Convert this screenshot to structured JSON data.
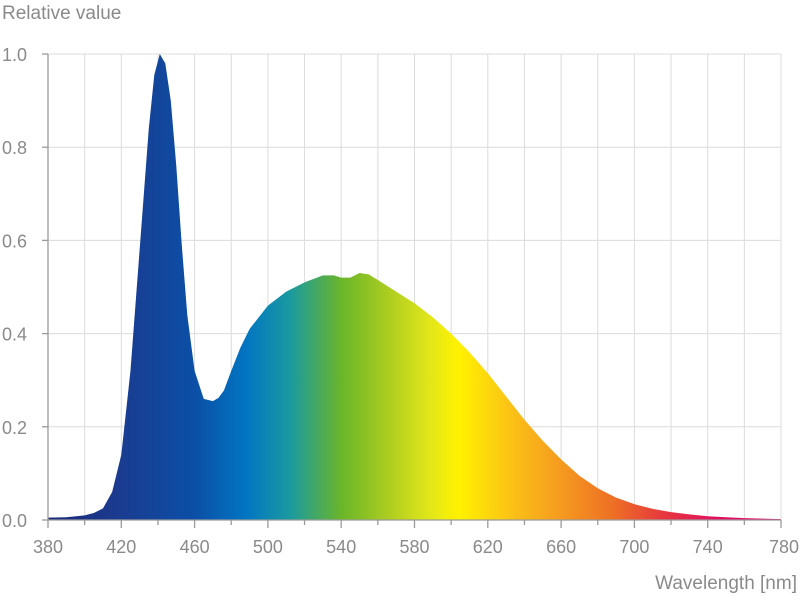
{
  "chart_data": {
    "type": "area",
    "title": "",
    "ylabel": "Relative value",
    "xlabel": "Wavelength [nm]",
    "xlim": [
      380,
      780
    ],
    "ylim": [
      0,
      1.0
    ],
    "grid": true,
    "x_major_ticks": [
      380,
      420,
      460,
      500,
      540,
      580,
      620,
      660,
      700,
      740,
      780
    ],
    "x_tick_labels": [
      "380",
      "420",
      "460",
      "500",
      "540",
      "580",
      "620",
      "660",
      "700",
      "740",
      "780"
    ],
    "x_minor_step": 20,
    "y_ticks": [
      0.0,
      0.2,
      0.4,
      0.6,
      0.8,
      1.0
    ],
    "y_tick_labels": [
      "0.0",
      "0.2",
      "0.4",
      "0.6",
      "0.8",
      "1.0"
    ],
    "fill": "visible-spectrum gradient",
    "series": [
      {
        "x": [
          380,
          390,
          400,
          405,
          410,
          415,
          420,
          425,
          430,
          435,
          438,
          441,
          444,
          447,
          450,
          453,
          456,
          460,
          465,
          470,
          473,
          476,
          480,
          485,
          490,
          500,
          510,
          520,
          530,
          536,
          540,
          545,
          550,
          555,
          560,
          570,
          580,
          590,
          600,
          610,
          620,
          630,
          640,
          650,
          660,
          670,
          680,
          690,
          700,
          710,
          720,
          730,
          740,
          750,
          760,
          770,
          780
        ],
        "y": [
          0.005,
          0.006,
          0.01,
          0.015,
          0.025,
          0.06,
          0.14,
          0.32,
          0.58,
          0.84,
          0.955,
          1.0,
          0.98,
          0.9,
          0.76,
          0.59,
          0.44,
          0.32,
          0.26,
          0.255,
          0.262,
          0.278,
          0.32,
          0.37,
          0.41,
          0.46,
          0.49,
          0.51,
          0.525,
          0.525,
          0.52,
          0.52,
          0.53,
          0.527,
          0.515,
          0.49,
          0.465,
          0.435,
          0.4,
          0.36,
          0.315,
          0.265,
          0.215,
          0.17,
          0.13,
          0.095,
          0.068,
          0.048,
          0.034,
          0.024,
          0.017,
          0.012,
          0.008,
          0.006,
          0.004,
          0.003,
          0.002
        ]
      }
    ]
  }
}
